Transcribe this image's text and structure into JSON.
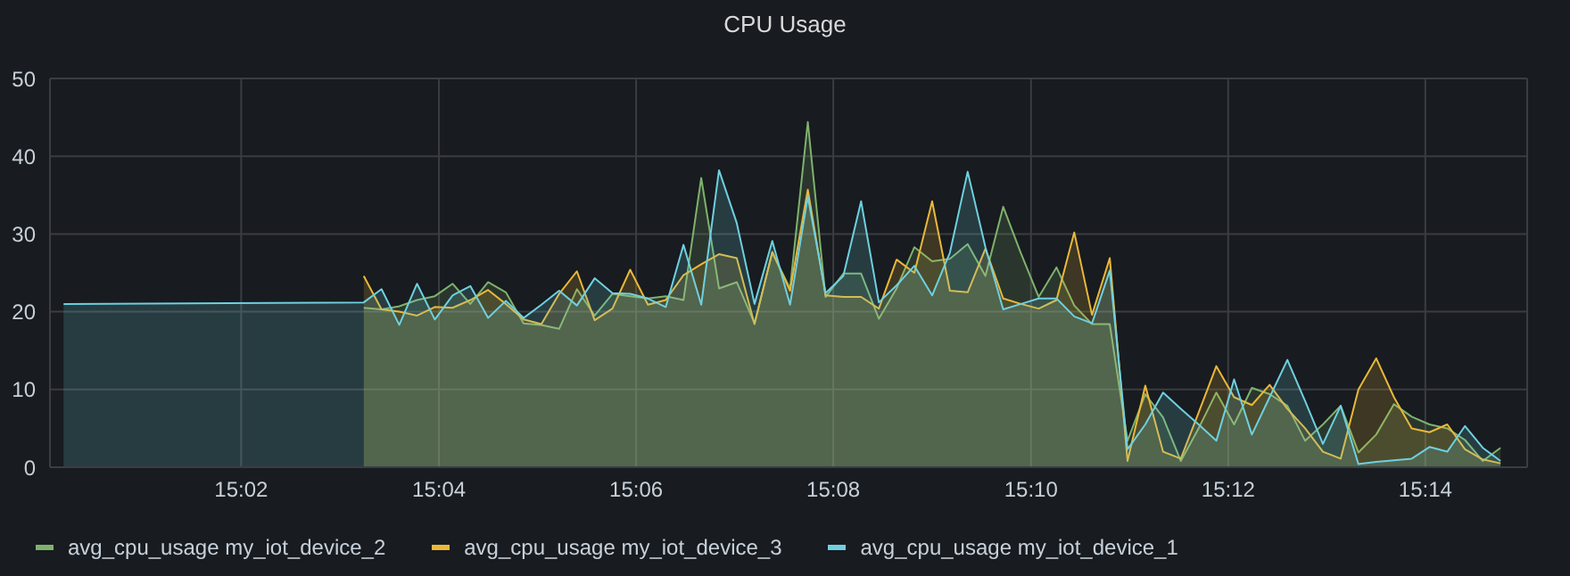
{
  "chart_data": {
    "type": "area",
    "title": "CPU Usage",
    "x": [
      15.0033,
      15.054,
      15.057,
      15.06,
      15.063,
      15.066,
      15.069,
      15.072,
      15.075,
      15.078,
      15.081,
      15.084,
      15.087,
      15.09,
      15.093,
      15.096,
      15.099,
      15.102,
      15.105,
      15.108,
      15.111,
      15.114,
      15.117,
      15.12,
      15.123,
      15.126,
      15.129,
      15.132,
      15.135,
      15.138,
      15.141,
      15.144,
      15.147,
      15.15,
      15.153,
      15.156,
      15.159,
      15.162,
      15.165,
      15.168,
      15.171,
      15.174,
      15.177,
      15.18,
      15.183,
      15.186,
      15.189,
      15.192,
      15.195,
      15.198,
      15.201,
      15.204,
      15.207,
      15.21,
      15.213,
      15.216,
      15.219,
      15.222,
      15.225,
      15.228,
      15.231,
      15.234,
      15.237,
      15.24,
      15.243,
      15.246
    ],
    "series": [
      {
        "name": "avg_cpu_usage my_iot_device_2",
        "color": "#7eb26d",
        "values": [
          null,
          20.5,
          20.3,
          20.7,
          21.5,
          22.0,
          23.6,
          21.0,
          23.8,
          22.5,
          18.5,
          18.3,
          17.8,
          22.9,
          19.5,
          22.3,
          22.0,
          21.7,
          22.0,
          21.5,
          37.2,
          23.0,
          23.8,
          18.5,
          27.6,
          23.0,
          44.4,
          21.9,
          24.9,
          24.9,
          19.1,
          23.0,
          28.3,
          26.5,
          26.8,
          28.7,
          24.6,
          33.5,
          27.5,
          21.9,
          25.7,
          20.8,
          18.4,
          18.4,
          3.4,
          9.4,
          6.4,
          0.8,
          5.0,
          9.6,
          5.5,
          10.2,
          9.4,
          7.9,
          3.4,
          5.5,
          7.9,
          1.9,
          4.2,
          8.1,
          6.5,
          5.5,
          5.0,
          3.5,
          0.8,
          2.5
        ]
      },
      {
        "name": "avg_cpu_usage my_iot_device_3",
        "color": "#eab839",
        "values": [
          null,
          24.6,
          20.3,
          20.0,
          19.5,
          20.6,
          20.5,
          21.5,
          22.8,
          21.0,
          19.0,
          18.4,
          22.3,
          25.2,
          18.9,
          20.4,
          25.4,
          20.9,
          21.5,
          24.7,
          26.1,
          27.4,
          26.9,
          18.4,
          27.7,
          22.7,
          35.7,
          22.1,
          21.9,
          21.9,
          20.4,
          26.7,
          25.0,
          34.2,
          22.7,
          22.5,
          28.1,
          21.7,
          21.0,
          20.4,
          21.5,
          30.2,
          19.6,
          26.9,
          0.8,
          10.5,
          2.0,
          1.1,
          7.0,
          13.0,
          9.0,
          8.0,
          10.6,
          7.5,
          5.0,
          2.0,
          1.1,
          10.0,
          14.0,
          9.0,
          5.0,
          4.5,
          5.5,
          2.3,
          1.0,
          0.5
        ]
      },
      {
        "name": "avg_cpu_usage my_iot_device_1",
        "color": "#6ed0e0",
        "values": [
          21.0,
          21.2,
          22.9,
          18.3,
          23.6,
          19.0,
          22.1,
          23.3,
          19.2,
          21.4,
          19.2,
          20.9,
          22.7,
          20.8,
          24.3,
          22.4,
          22.3,
          21.7,
          20.6,
          28.6,
          20.9,
          38.2,
          31.4,
          21.0,
          29.1,
          20.9,
          34.8,
          22.4,
          24.6,
          34.2,
          21.2,
          23.4,
          25.9,
          22.1,
          27.6,
          38.0,
          28.3,
          20.3,
          21.0,
          21.7,
          21.7,
          19.4,
          18.5,
          25.3,
          2.3,
          5.5,
          9.6,
          7.5,
          5.5,
          3.4,
          11.3,
          4.2,
          9.0,
          13.8,
          8.5,
          3.0,
          7.9,
          0.4,
          0.7,
          0.9,
          1.1,
          2.6,
          2.0,
          5.3,
          2.5,
          0.8
        ]
      }
    ],
    "xlim": [
      15.001,
      15.2505
    ],
    "xticks": [
      {
        "value": 15.0333,
        "label": "15:02"
      },
      {
        "value": 15.0667,
        "label": "15:04"
      },
      {
        "value": 15.1,
        "label": "15:06"
      },
      {
        "value": 15.1333,
        "label": "15:08"
      },
      {
        "value": 15.1667,
        "label": "15:10"
      },
      {
        "value": 15.2,
        "label": "15:12"
      },
      {
        "value": 15.2333,
        "label": "15:14"
      }
    ],
    "ylim": [
      0,
      50
    ],
    "yticks": [
      0,
      10,
      20,
      30,
      40,
      50
    ],
    "grid": true,
    "legend": "bottom"
  }
}
